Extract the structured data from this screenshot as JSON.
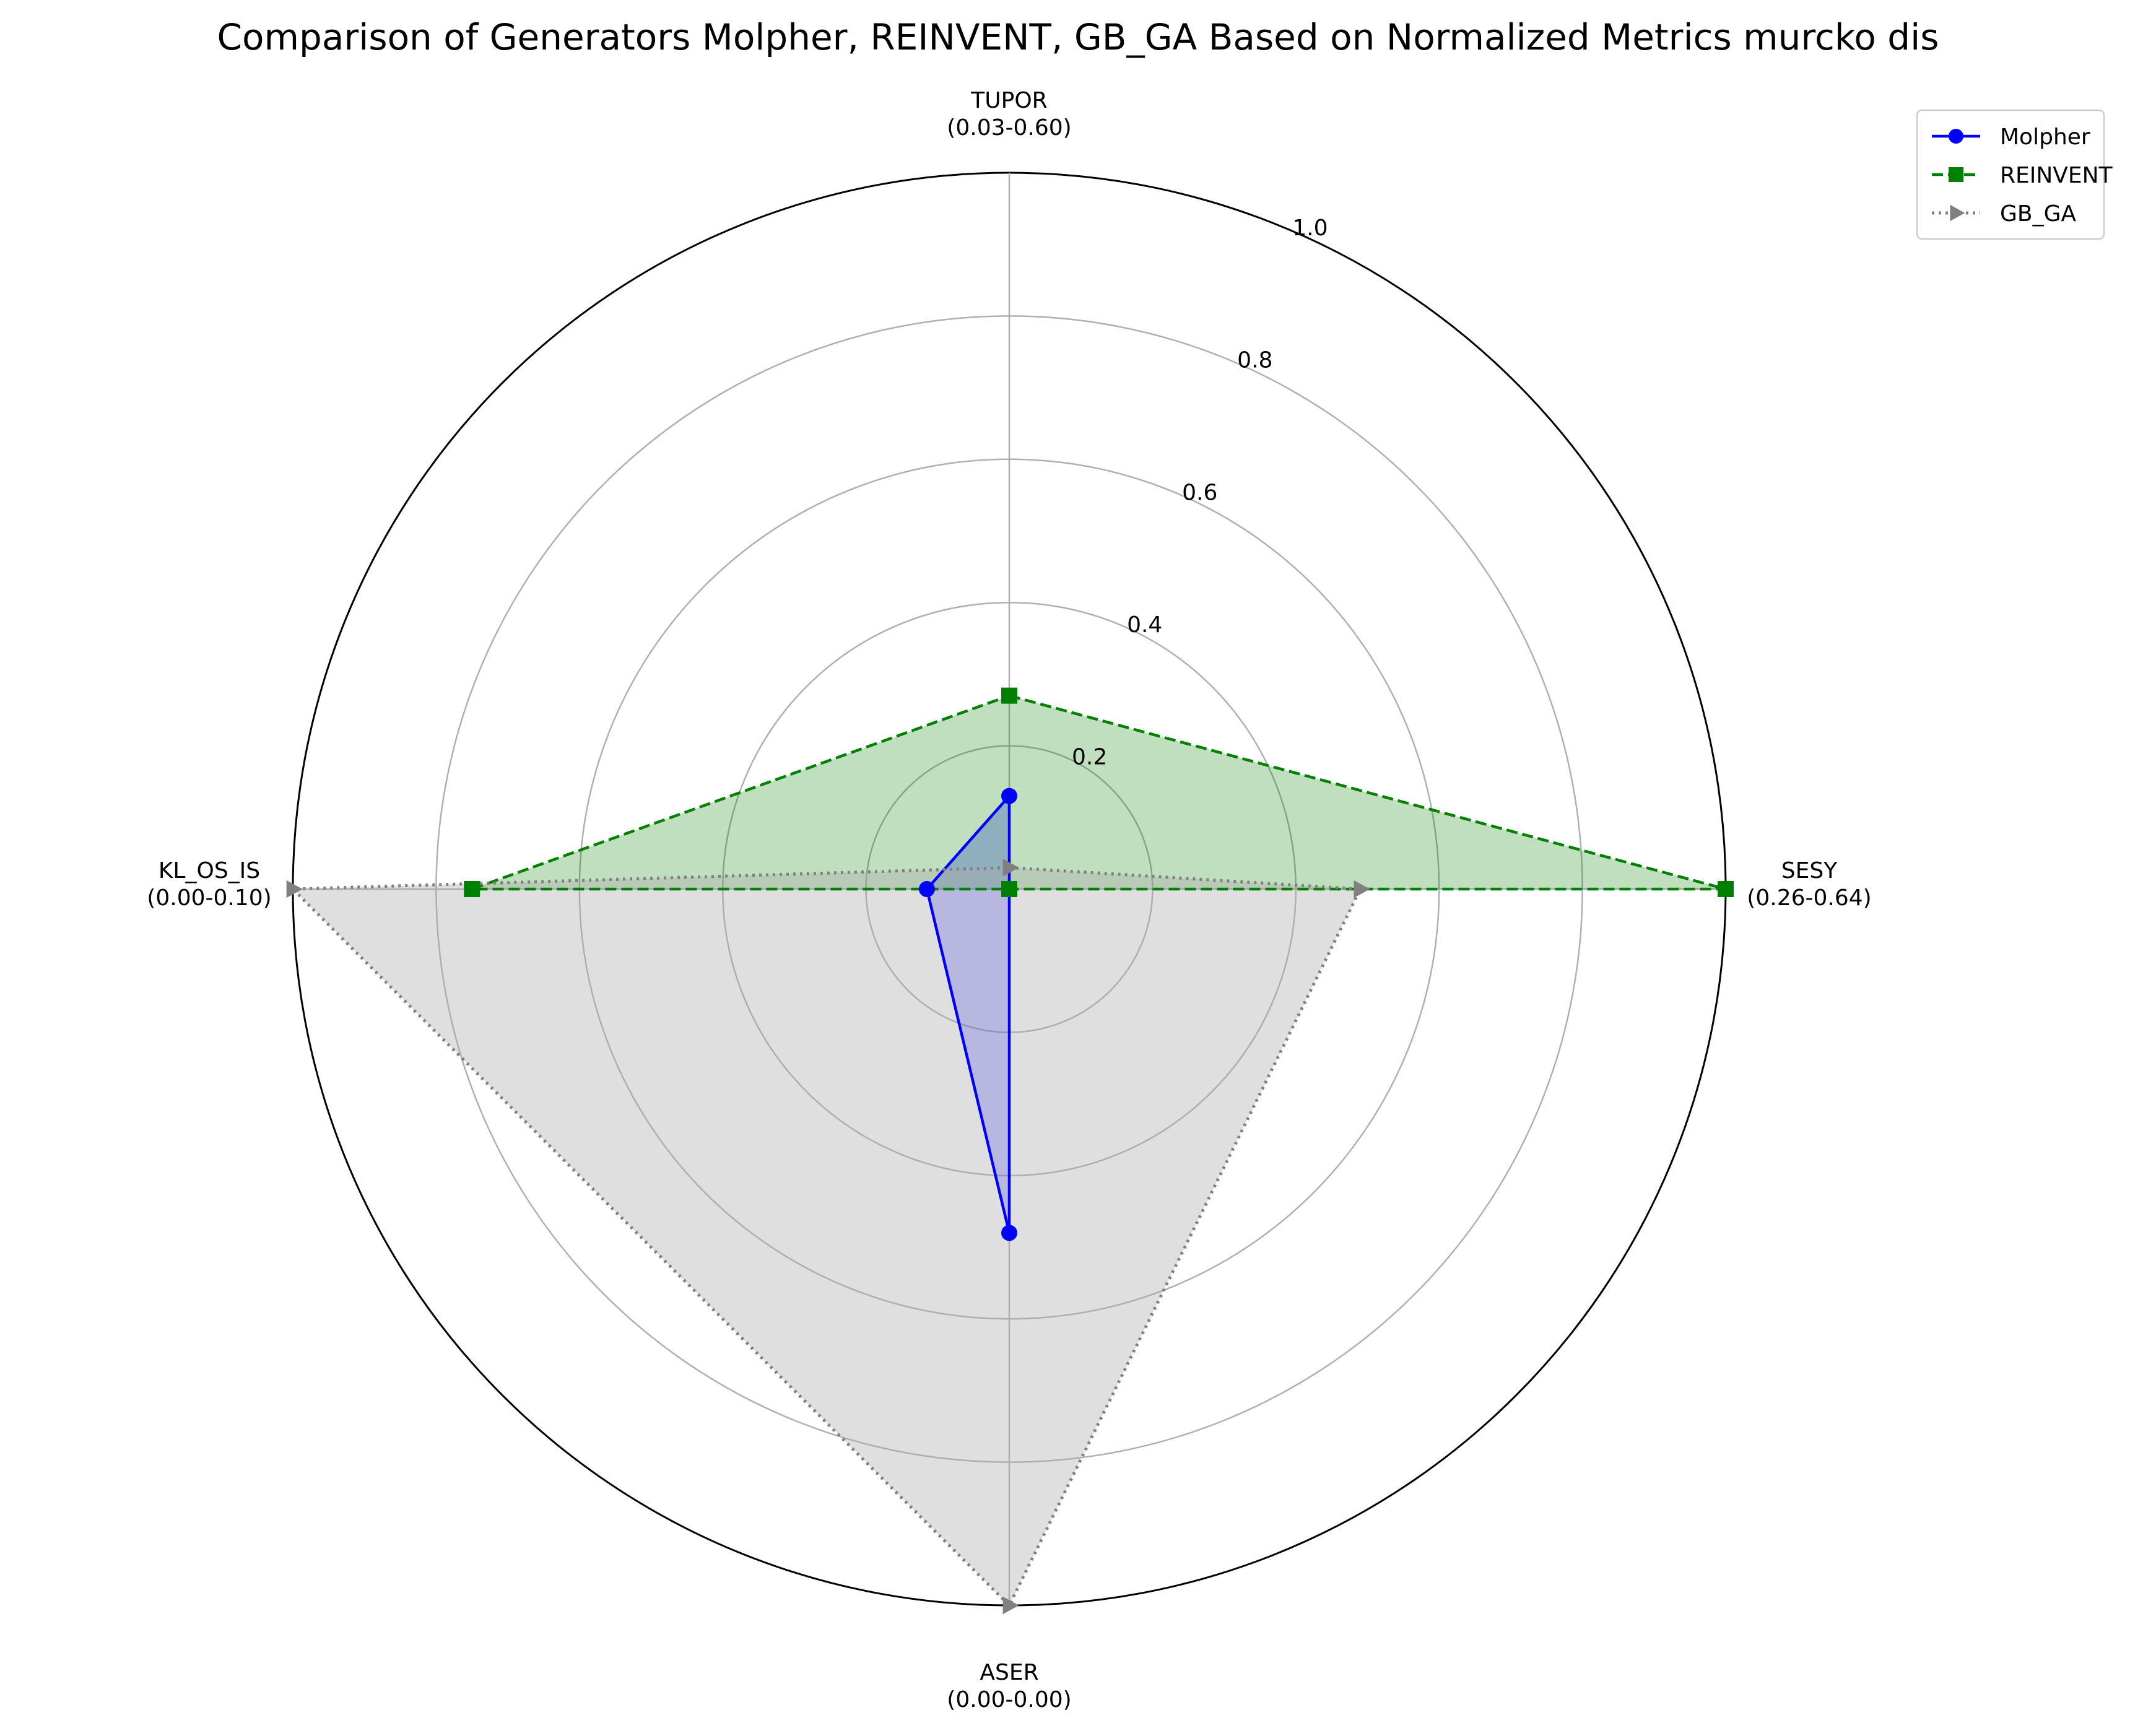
{
  "chart_data": {
    "type": "radar",
    "title": "Comparison of Generators Molpher, REINVENT, GB_GA Based on Normalized Metrics murcko dis",
    "axes": [
      {
        "name": "TUPOR",
        "range": "(0.03-0.60)"
      },
      {
        "name": "SESY",
        "range": "(0.26-0.64)"
      },
      {
        "name": "ASER",
        "range": "(0.00-0.00)"
      },
      {
        "name": "KL_OS_IS",
        "range": "(0.00-0.10)"
      }
    ],
    "radial_ticks": [
      "0.2",
      "0.4",
      "0.6",
      "0.8",
      "1.0"
    ],
    "rlim": [
      0,
      1.0
    ],
    "grid": true,
    "legend_position": "top-right",
    "series": [
      {
        "name": "Molpher",
        "values": [
          0.13,
          0.0,
          0.48,
          0.115
        ],
        "color": "#0000ff",
        "fill": "#0000ff",
        "marker": "circle",
        "line_style": "solid"
      },
      {
        "name": "REINVENT",
        "values": [
          0.27,
          1.0,
          0.0,
          0.75
        ],
        "color": "#008000",
        "fill": "#008000",
        "marker": "square",
        "line_style": "dashed"
      },
      {
        "name": "GB_GA",
        "values": [
          0.03,
          0.49,
          1.0,
          1.0
        ],
        "color": "#808080",
        "fill": "#aaaaaa",
        "marker": "triangle-right",
        "line_style": "dotted"
      }
    ]
  }
}
